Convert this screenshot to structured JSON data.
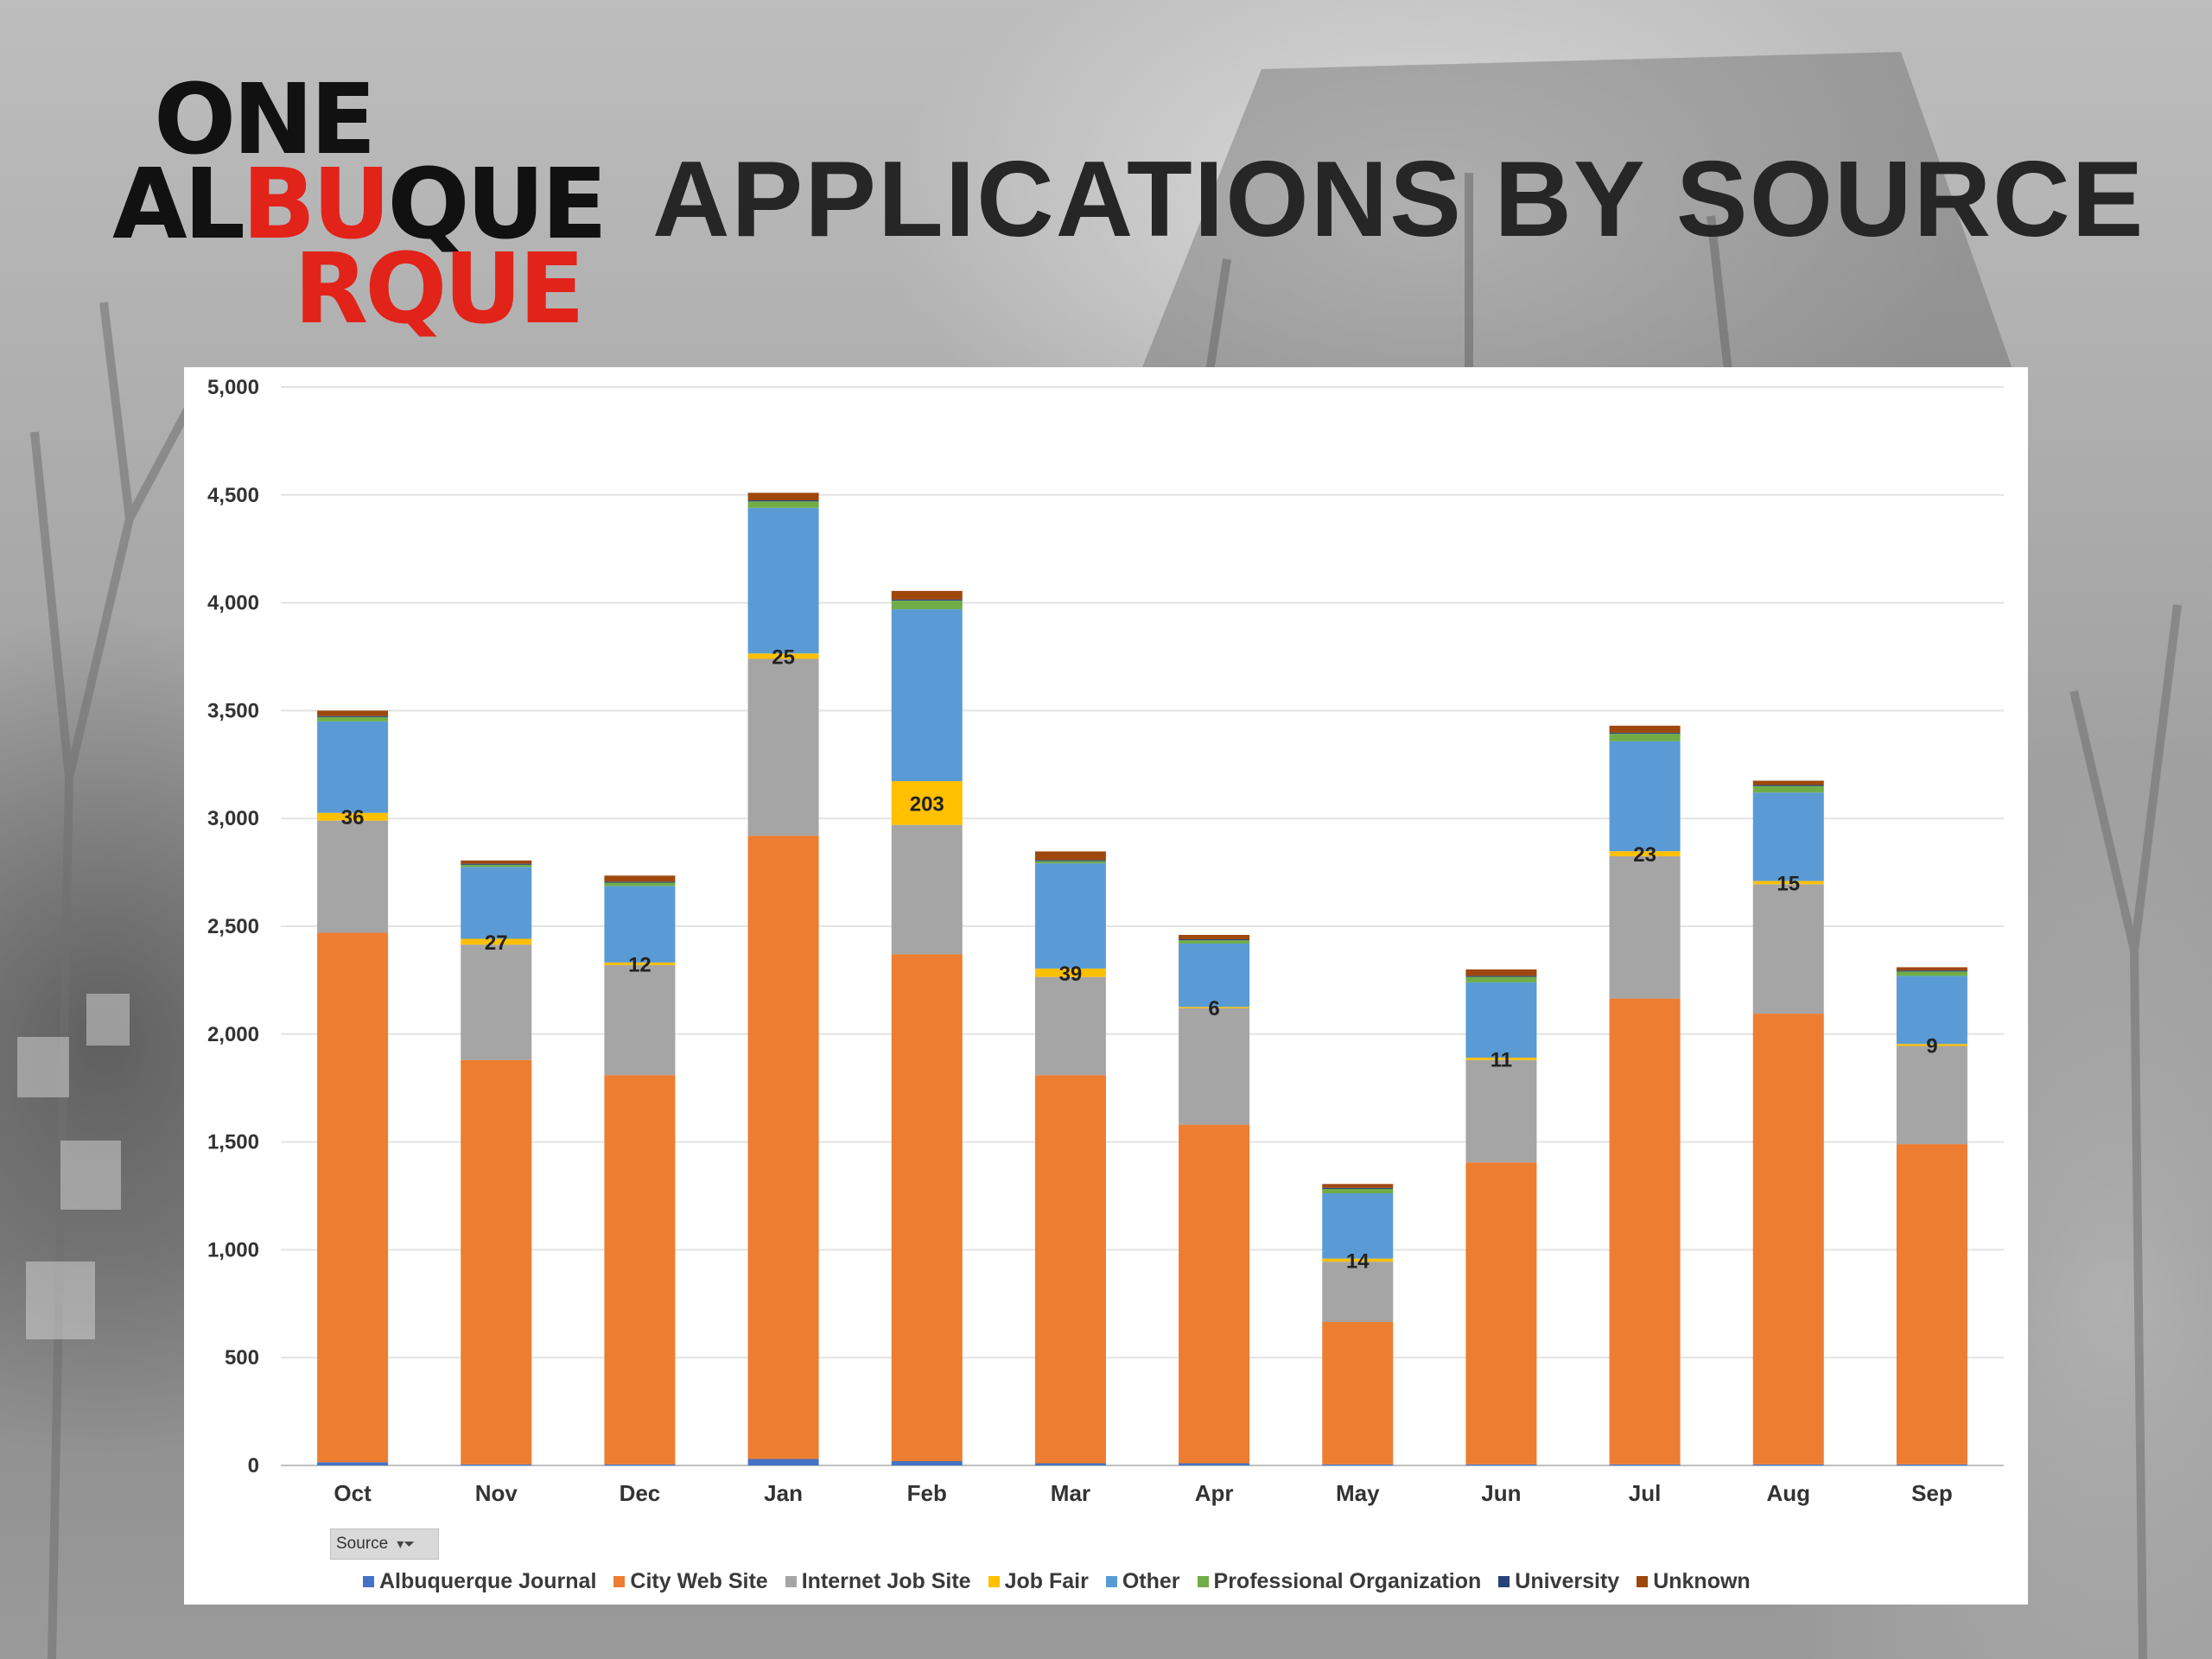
{
  "slide": {
    "title": "APPLICATIONS BY SOURCE",
    "logo": {
      "line1": "ONE",
      "line2_a": "AL",
      "line2_b": "BU",
      "line2_c": "QUE",
      "line3": "RQUE"
    }
  },
  "pivot": {
    "field_button": "Source"
  },
  "colors": {
    "Albuquerque Journal": "#4472c4",
    "City Web Site": "#ed7d31",
    "Internet Job Site": "#a5a5a5",
    "Job Fair": "#ffc000",
    "Other": "#5b9bd5",
    "Professional Organization": "#70ad47",
    "University": "#264478",
    "Unknown": "#9e480e"
  },
  "chart_data": {
    "type": "bar",
    "stacked": true,
    "title": "APPLICATIONS BY SOURCE",
    "categories": [
      "Oct",
      "Nov",
      "Dec",
      "Jan",
      "Feb",
      "Mar",
      "Apr",
      "May",
      "Jun",
      "Jul",
      "Aug",
      "Sep"
    ],
    "ylim": [
      0,
      5000
    ],
    "yticks": [
      0,
      500,
      1000,
      1500,
      2000,
      2500,
      3000,
      3500,
      4000,
      4500,
      5000
    ],
    "ytick_labels": [
      "0",
      "500",
      "1,000",
      "1,500",
      "2,000",
      "2,500",
      "3,000",
      "3,500",
      "4,000",
      "4,500",
      "5,000"
    ],
    "grid": true,
    "legend_position": "bottom",
    "data_label_series": "Job Fair",
    "series": [
      {
        "name": "Albuquerque Journal",
        "values": [
          15,
          5,
          5,
          30,
          20,
          10,
          10,
          5,
          5,
          5,
          5,
          5
        ]
      },
      {
        "name": "City Web Site",
        "values": [
          2455,
          1875,
          1805,
          2890,
          2350,
          1800,
          1570,
          660,
          1400,
          2160,
          2090,
          1485
        ]
      },
      {
        "name": "Internet Job Site",
        "values": [
          520,
          535,
          510,
          820,
          600,
          455,
          540,
          280,
          475,
          660,
          600,
          455
        ]
      },
      {
        "name": "Job Fair",
        "values": [
          36,
          27,
          12,
          25,
          203,
          39,
          6,
          14,
          11,
          23,
          15,
          9
        ]
      },
      {
        "name": "Other",
        "values": [
          424,
          333,
          355,
          675,
          797,
          488,
          294,
          303,
          349,
          510,
          410,
          316
        ]
      },
      {
        "name": "Professional Organization",
        "values": [
          20,
          10,
          15,
          30,
          40,
          10,
          15,
          20,
          25,
          35,
          30,
          20
        ]
      },
      {
        "name": "University",
        "values": [
          5,
          5,
          5,
          5,
          5,
          5,
          5,
          5,
          5,
          5,
          5,
          5
        ]
      },
      {
        "name": "Unknown",
        "values": [
          25,
          15,
          28,
          35,
          40,
          40,
          20,
          18,
          30,
          32,
          20,
          15
        ]
      }
    ],
    "data_labels": [
      "36",
      "27",
      "12",
      "25",
      "203",
      "39",
      "6",
      "14",
      "11",
      "23",
      "15",
      "9"
    ]
  }
}
